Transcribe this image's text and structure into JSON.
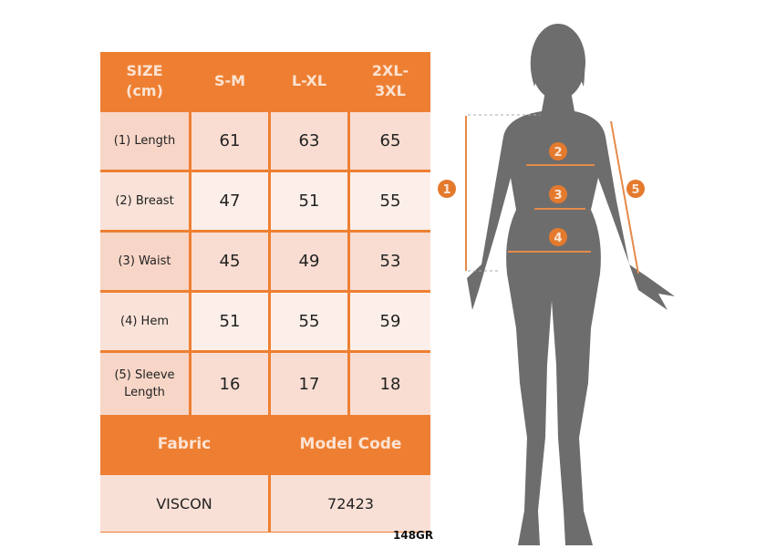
{
  "table": {
    "headers": [
      "SIZE\n(cm)",
      "S-M",
      "L-XL",
      "2XL-\n3XL"
    ],
    "rows": [
      {
        "label": "(1) Length",
        "values": [
          "61",
          "63",
          "65"
        ]
      },
      {
        "label": "(2) Breast",
        "values": [
          "47",
          "51",
          "55"
        ]
      },
      {
        "label": "(3) Waist",
        "values": [
          "45",
          "49",
          "53"
        ]
      },
      {
        "label": "(4) Hem",
        "values": [
          "51",
          "55",
          "59"
        ]
      },
      {
        "label": "(5) Sleeve Length",
        "values": [
          "16",
          "17",
          "18"
        ]
      }
    ],
    "fabric_label": "Fabric",
    "model_code_label": "Model Code",
    "fabric_value": "VISCON",
    "model_code_value": "72423"
  },
  "code": "148GR",
  "markers": [
    "1",
    "2",
    "3",
    "4",
    "5"
  ],
  "colors": {
    "accent": "#ee7f32",
    "silhouette": "#6d6d6d"
  }
}
